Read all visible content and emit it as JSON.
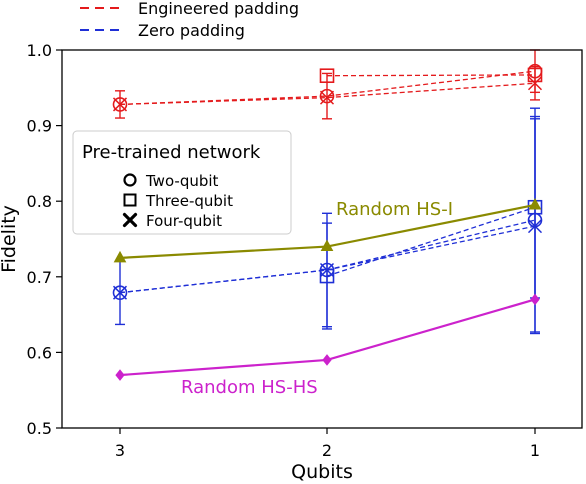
{
  "chart_data": {
    "type": "line",
    "xlabel": "Qubits",
    "ylabel": "Fidelity",
    "x_categories": [
      "3",
      "2",
      "1"
    ],
    "ylim": [
      0.5,
      1.0
    ],
    "yticks": [
      "0.5",
      "0.6",
      "0.7",
      "0.8",
      "0.9",
      "1.0"
    ],
    "top_legend": {
      "entries": [
        {
          "label": "Engineered padding",
          "color": "#e41a1c"
        },
        {
          "label": "Zero padding",
          "color": "#1f2fd6"
        }
      ]
    },
    "legend": {
      "title": "Pre-trained network",
      "placement": "upper-left",
      "entries": [
        {
          "label": "Two-qubit",
          "marker": "circle"
        },
        {
          "label": "Three-qubit",
          "marker": "square"
        },
        {
          "label": "Four-qubit",
          "marker": "x"
        }
      ]
    },
    "annotations": [
      {
        "text": "Random HS-I",
        "color": "#8a8a00"
      },
      {
        "text": "Random HS-HS",
        "color": "#cc22cc"
      }
    ],
    "series": [
      {
        "group": "engineered",
        "network": "Two-qubit",
        "marker": "circle",
        "color": "#e41a1c",
        "dashed": true,
        "points": [
          [
            0,
            0.928,
            0.018
          ],
          [
            1,
            0.939,
            0.03
          ],
          [
            2,
            0.972,
            0.028
          ]
        ]
      },
      {
        "group": "engineered",
        "network": "Three-qubit",
        "marker": "square",
        "color": "#e41a1c",
        "dashed": true,
        "points": [
          [
            1,
            0.966,
            null
          ],
          [
            2,
            0.967,
            null
          ]
        ]
      },
      {
        "group": "engineered",
        "network": "Four-qubit",
        "marker": "x",
        "color": "#e41a1c",
        "dashed": true,
        "points": [
          [
            0,
            0.928,
            null
          ],
          [
            1,
            0.937,
            null
          ],
          [
            2,
            0.956,
            0.022
          ]
        ]
      },
      {
        "group": "zero",
        "network": "Two-qubit",
        "marker": "circle",
        "color": "#1f2fd6",
        "dashed": true,
        "points": [
          [
            0,
            0.679,
            0.042
          ],
          [
            1,
            0.709,
            0.075
          ],
          [
            2,
            0.775,
            0.148
          ]
        ]
      },
      {
        "group": "zero",
        "network": "Three-qubit",
        "marker": "square",
        "color": "#1f2fd6",
        "dashed": true,
        "points": [
          [
            1,
            0.701,
            0.07
          ],
          [
            2,
            0.792,
            0.12
          ]
        ]
      },
      {
        "group": "zero",
        "network": "Four-qubit",
        "marker": "x",
        "color": "#1f2fd6",
        "dashed": true,
        "points": [
          [
            0,
            0.679,
            null
          ],
          [
            1,
            0.709,
            null
          ],
          [
            2,
            0.767,
            0.142
          ]
        ]
      },
      {
        "group": "random",
        "network": "Random HS-I",
        "marker": "triangle",
        "color": "#8a8a00",
        "dashed": false,
        "points": [
          [
            0,
            0.725,
            null
          ],
          [
            1,
            0.74,
            null
          ],
          [
            2,
            0.795,
            null
          ]
        ]
      },
      {
        "group": "random",
        "network": "Random HS-HS",
        "marker": "diamond",
        "color": "#cc22cc",
        "dashed": false,
        "points": [
          [
            0,
            0.57,
            null
          ],
          [
            1,
            0.59,
            null
          ],
          [
            2,
            0.67,
            null
          ]
        ]
      }
    ]
  }
}
